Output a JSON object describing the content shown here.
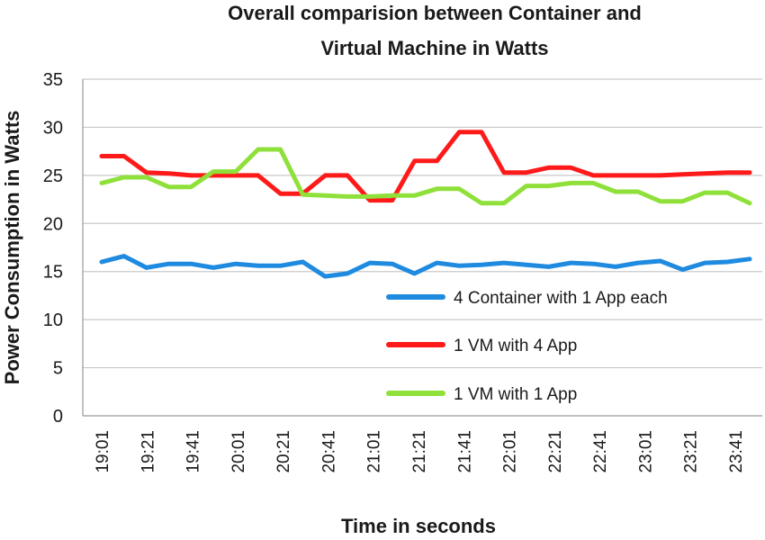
{
  "chart_data": {
    "type": "line",
    "title": [
      "Overall comparision between Container and",
      "Virtual Machine in Watts"
    ],
    "xlabel": "Time in seconds",
    "ylabel": "Power Consumption  in Watts",
    "ylim": [
      0,
      35
    ],
    "yticks": [
      0,
      5,
      10,
      15,
      20,
      25,
      30,
      35
    ],
    "x_tick_labels": [
      "19:01",
      "19:21",
      "19:41",
      "20:01",
      "20:21",
      "20:41",
      "21:01",
      "21:21",
      "21:41",
      "22:01",
      "22:21",
      "22:41",
      "23:01",
      "23:21",
      "23:41"
    ],
    "grid": "horizontal",
    "legend_position": "bottom-right",
    "series": [
      {
        "name": "4 Container with 1 App each",
        "color": "#1f8be0",
        "values": [
          16.0,
          16.6,
          15.4,
          15.8,
          15.8,
          15.4,
          15.8,
          15.6,
          15.6,
          16.0,
          14.5,
          14.8,
          15.9,
          15.8,
          14.8,
          15.9,
          15.6,
          15.7,
          15.9,
          15.7,
          15.5,
          15.9,
          15.8,
          15.5,
          15.9,
          16.1,
          15.2,
          15.9,
          16.0,
          16.3
        ]
      },
      {
        "name": "1 VM with 4 App",
        "color": "#ff1a1a",
        "values": [
          27.0,
          27.0,
          25.3,
          25.2,
          25.0,
          25.0,
          25.0,
          25.0,
          23.1,
          23.1,
          25.0,
          25.0,
          22.4,
          22.4,
          26.5,
          26.5,
          29.5,
          29.5,
          25.3,
          25.3,
          25.8,
          25.8,
          25.0,
          25.0,
          25.0,
          25.0,
          25.1,
          25.2,
          25.3,
          25.3
        ]
      },
      {
        "name": "1 VM with 1 App",
        "color": "#8fe03a",
        "values": [
          24.2,
          24.8,
          24.8,
          23.8,
          23.8,
          25.4,
          25.4,
          27.7,
          27.7,
          23.0,
          22.9,
          22.8,
          22.8,
          22.9,
          22.9,
          23.6,
          23.6,
          22.1,
          22.1,
          23.9,
          23.9,
          24.2,
          24.2,
          23.3,
          23.3,
          22.3,
          22.3,
          23.2,
          23.2,
          22.1
        ]
      }
    ]
  }
}
